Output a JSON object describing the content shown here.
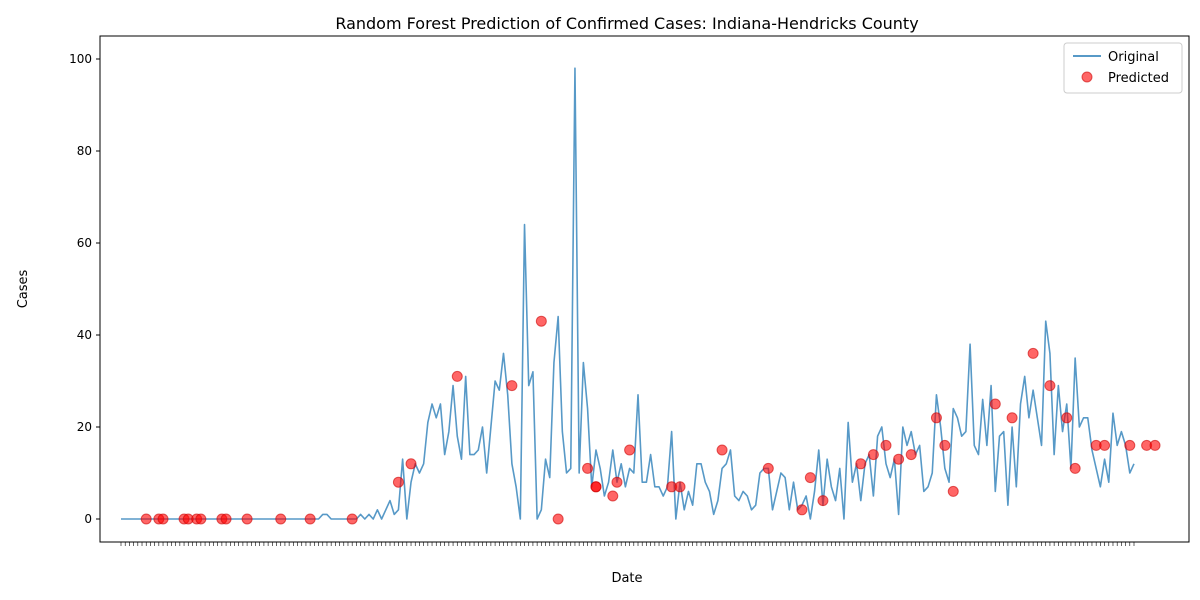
{
  "chart_data": {
    "type": "line",
    "title": "Random Forest Prediction of Confirmed Cases: Indiana-Hendricks County",
    "xlabel": "Date",
    "ylabel": "Cases",
    "ylim": [
      -5,
      105
    ],
    "yticks": [
      0,
      20,
      40,
      60,
      80,
      100
    ],
    "legend_position": "top-right",
    "grid": false,
    "colors": {
      "original": "#1f77b4",
      "predicted": "#ff0000"
    },
    "series": [
      {
        "name": "Original",
        "kind": "line",
        "values": [
          0,
          0,
          0,
          0,
          0,
          0,
          0,
          0,
          0,
          0,
          0,
          0,
          0,
          0,
          0,
          0,
          0,
          0,
          0,
          0,
          0,
          0,
          0,
          0,
          0,
          0,
          0,
          0,
          0,
          0,
          0,
          0,
          0,
          0,
          0,
          0,
          0,
          0,
          0,
          0,
          0,
          0,
          0,
          0,
          0,
          0,
          0,
          0,
          1,
          1,
          0,
          0,
          0,
          0,
          0,
          0,
          0,
          1,
          0,
          1,
          0,
          2,
          0,
          2,
          4,
          1,
          2,
          13,
          0,
          8,
          12,
          10,
          12,
          21,
          25,
          22,
          25,
          14,
          19,
          29,
          18,
          13,
          31,
          14,
          14,
          15,
          20,
          10,
          20,
          30,
          28,
          36,
          27,
          12,
          7,
          0,
          64,
          29,
          32,
          0,
          2,
          13,
          9,
          34,
          44,
          19,
          10,
          11,
          98,
          10,
          34,
          24,
          7,
          15,
          11,
          5,
          8,
          15,
          8,
          12,
          7,
          11,
          10,
          27,
          8,
          8,
          14,
          7,
          7,
          5,
          7,
          19,
          0,
          8,
          2,
          6,
          3,
          12,
          12,
          8,
          6,
          1,
          4,
          11,
          12,
          15,
          5,
          4,
          6,
          5,
          2,
          3,
          10,
          11,
          11,
          2,
          6,
          10,
          9,
          2,
          8,
          2,
          3,
          5,
          0,
          6,
          15,
          3,
          13,
          7,
          4,
          11,
          0,
          21,
          8,
          12,
          4,
          12,
          14,
          5,
          18,
          20,
          12,
          9,
          13,
          1,
          20,
          16,
          19,
          14,
          16,
          6,
          7,
          10,
          27,
          20,
          11,
          8,
          24,
          22,
          18,
          19,
          38,
          16,
          14,
          26,
          16,
          29,
          6,
          18,
          19,
          3,
          20,
          7,
          25,
          31,
          22,
          28,
          22,
          16,
          43,
          36,
          14,
          29,
          19,
          25,
          11,
          35,
          20,
          22,
          22,
          15,
          11,
          7,
          13,
          8,
          23,
          16,
          19,
          16,
          10,
          12
        ]
      },
      {
        "name": "Predicted",
        "kind": "scatter",
        "x": [
          6,
          9,
          10,
          15,
          16,
          18,
          19,
          24,
          25,
          30,
          38,
          45,
          55,
          66,
          69,
          80,
          93,
          100,
          104,
          111,
          113,
          113,
          117,
          118,
          121,
          131,
          133,
          143,
          154,
          162,
          164,
          167,
          176,
          179,
          182,
          185,
          188,
          194,
          196,
          198,
          208,
          212,
          217,
          221,
          225,
          227,
          232,
          234,
          240,
          244,
          246
        ],
        "values": [
          0,
          0,
          0,
          0,
          0,
          0,
          0,
          0,
          0,
          0,
          0,
          0,
          0,
          8,
          12,
          31,
          29,
          43,
          0,
          11,
          7,
          7,
          5,
          8,
          15,
          7,
          7,
          15,
          11,
          2,
          9,
          4,
          12,
          14,
          16,
          13,
          14,
          22,
          16,
          6,
          25,
          22,
          36,
          29,
          22,
          11,
          16,
          16,
          16,
          16,
          16
        ]
      }
    ]
  }
}
